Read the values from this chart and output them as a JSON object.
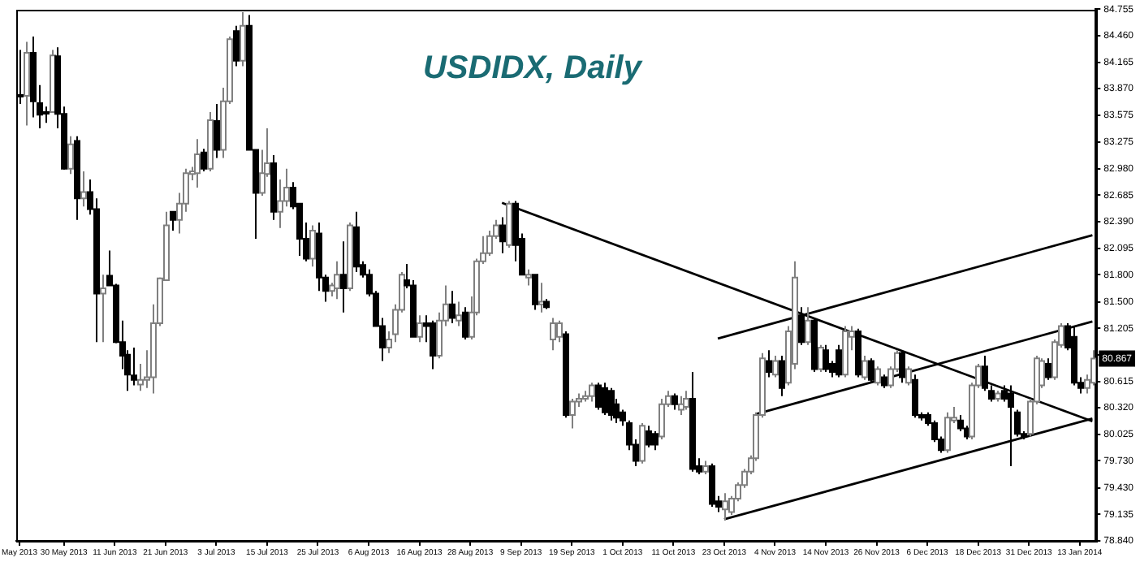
{
  "chart_data": {
    "type": "candlestick",
    "title": "USDIDX, Daily",
    "categories": [
      "May 2013",
      null,
      null,
      null,
      null,
      null,
      null,
      "30 May 2013",
      null,
      null,
      null,
      null,
      null,
      null,
      null,
      "11 Jun 2013",
      null,
      null,
      null,
      null,
      null,
      null,
      null,
      "21 Jun 2013",
      null,
      null,
      null,
      null,
      null,
      null,
      null,
      "3 Jul 2013",
      null,
      null,
      null,
      null,
      null,
      null,
      null,
      "15 Jul 2013",
      null,
      null,
      null,
      null,
      null,
      null,
      null,
      "25 Jul 2013",
      null,
      null,
      null,
      null,
      null,
      null,
      null,
      "6 Aug 2013",
      null,
      null,
      null,
      null,
      null,
      null,
      null,
      "16 Aug 2013",
      null,
      null,
      null,
      null,
      null,
      null,
      null,
      "28 Aug 2013",
      null,
      null,
      null,
      null,
      null,
      null,
      null,
      "9 Sep 2013",
      null,
      null,
      null,
      null,
      null,
      null,
      null,
      "19 Sep 2013",
      null,
      null,
      null,
      null,
      null,
      null,
      null,
      "1 Oct 2013",
      null,
      null,
      null,
      null,
      null,
      null,
      null,
      "11 Oct 2013",
      null,
      null,
      null,
      null,
      null,
      null,
      null,
      "23 Oct 2013",
      null,
      null,
      null,
      null,
      null,
      null,
      null,
      "4 Nov 2013",
      null,
      null,
      null,
      null,
      null,
      null,
      null,
      "14 Nov 2013",
      null,
      null,
      null,
      null,
      null,
      null,
      null,
      "26 Nov 2013",
      null,
      null,
      null,
      null,
      null,
      null,
      null,
      "6 Dec 2013",
      null,
      null,
      null,
      null,
      null,
      null,
      null,
      "18 Dec 2013",
      null,
      null,
      null,
      null,
      null,
      null,
      null,
      "31 Dec 2013",
      null,
      null,
      null,
      null,
      null,
      null,
      null,
      "13 Jan 2014",
      null,
      null
    ],
    "ohlc": [
      [
        83.8,
        84.3,
        83.7,
        83.79
      ],
      [
        83.79,
        84.39,
        83.46,
        84.27
      ],
      [
        84.27,
        84.45,
        83.55,
        83.73
      ],
      [
        83.71,
        83.91,
        83.43,
        83.58
      ],
      [
        83.61,
        83.67,
        83.49,
        83.6
      ],
      [
        83.61,
        84.3,
        83.6,
        84.24
      ],
      [
        84.23,
        84.33,
        83.43,
        83.59
      ],
      [
        83.59,
        83.67,
        82.97,
        82.98
      ],
      [
        82.98,
        83.34,
        82.92,
        83.25
      ],
      [
        83.29,
        83.34,
        82.41,
        82.65
      ],
      [
        82.65,
        82.95,
        82.56,
        82.72
      ],
      [
        82.72,
        82.86,
        82.47,
        82.53
      ],
      [
        82.53,
        82.65,
        81.05,
        81.59
      ],
      [
        81.59,
        81.8,
        81.05,
        81.65
      ],
      [
        81.79,
        82.07,
        81.68,
        81.68
      ],
      [
        81.68,
        81.7,
        81.04,
        81.05
      ],
      [
        81.05,
        81.29,
        80.75,
        80.9
      ],
      [
        80.91,
        80.96,
        80.51,
        80.69
      ],
      [
        80.68,
        80.99,
        80.57,
        80.63
      ],
      [
        80.58,
        80.81,
        80.51,
        80.63
      ],
      [
        80.63,
        80.96,
        80.54,
        80.66
      ],
      [
        80.66,
        81.47,
        80.48,
        81.26
      ],
      [
        81.26,
        81.77,
        81.23,
        81.76
      ],
      [
        81.74,
        82.5,
        81.74,
        82.35
      ],
      [
        82.5,
        82.5,
        82.29,
        82.41
      ],
      [
        82.41,
        82.71,
        82.26,
        82.59
      ],
      [
        82.59,
        82.98,
        82.5,
        82.93
      ],
      [
        82.92,
        83.0,
        82.85,
        82.95
      ],
      [
        82.93,
        83.31,
        82.77,
        83.14
      ],
      [
        83.16,
        83.2,
        82.95,
        82.98
      ],
      [
        82.98,
        83.61,
        82.95,
        83.52
      ],
      [
        83.51,
        83.7,
        83.1,
        83.19
      ],
      [
        83.19,
        83.88,
        83.1,
        83.73
      ],
      [
        83.73,
        84.45,
        83.7,
        84.42
      ],
      [
        84.51,
        84.57,
        84.12,
        84.18
      ],
      [
        84.18,
        84.72,
        84.12,
        84.57
      ],
      [
        84.57,
        84.69,
        83.19,
        83.19
      ],
      [
        83.19,
        83.19,
        82.2,
        82.71
      ],
      [
        82.71,
        83.19,
        82.68,
        82.93
      ],
      [
        82.92,
        83.43,
        82.89,
        83.04
      ],
      [
        83.04,
        83.13,
        82.41,
        82.5
      ],
      [
        82.5,
        82.86,
        82.32,
        82.62
      ],
      [
        82.62,
        82.98,
        82.56,
        82.77
      ],
      [
        82.77,
        82.83,
        82.53,
        82.56
      ],
      [
        82.59,
        82.59,
        82.01,
        82.2
      ],
      [
        82.2,
        82.38,
        81.95,
        81.98
      ],
      [
        81.98,
        82.35,
        81.89,
        82.29
      ],
      [
        82.26,
        82.38,
        81.62,
        81.77
      ],
      [
        81.77,
        81.8,
        81.5,
        81.62
      ],
      [
        81.62,
        81.71,
        81.56,
        81.68
      ],
      [
        81.65,
        81.95,
        81.53,
        81.8
      ],
      [
        81.8,
        82.17,
        81.38,
        81.65
      ],
      [
        81.65,
        82.38,
        81.62,
        82.35
      ],
      [
        82.33,
        82.5,
        81.83,
        81.89
      ],
      [
        81.91,
        81.95,
        81.77,
        81.8
      ],
      [
        81.8,
        81.86,
        81.56,
        81.59
      ],
      [
        81.59,
        81.62,
        81.23,
        81.23
      ],
      [
        81.23,
        81.32,
        80.84,
        80.99
      ],
      [
        80.99,
        81.17,
        80.93,
        81.08
      ],
      [
        81.14,
        81.47,
        81.05,
        81.41
      ],
      [
        81.41,
        81.83,
        81.38,
        81.8
      ],
      [
        81.74,
        81.92,
        81.65,
        81.68
      ],
      [
        81.68,
        81.74,
        81.11,
        81.11
      ],
      [
        81.11,
        81.35,
        81.05,
        81.26
      ],
      [
        81.26,
        81.35,
        81.05,
        81.23
      ],
      [
        81.26,
        81.29,
        80.75,
        80.9
      ],
      [
        80.9,
        81.38,
        80.87,
        81.29
      ],
      [
        81.29,
        81.68,
        81.23,
        81.47
      ],
      [
        81.47,
        81.62,
        81.26,
        81.32
      ],
      [
        81.29,
        81.5,
        81.23,
        81.35
      ],
      [
        81.38,
        81.44,
        81.08,
        81.11
      ],
      [
        81.11,
        81.56,
        81.08,
        81.38
      ],
      [
        81.38,
        81.98,
        81.35,
        81.95
      ],
      [
        81.95,
        82.23,
        81.92,
        82.04
      ],
      [
        82.04,
        82.29,
        82.01,
        82.23
      ],
      [
        82.23,
        82.41,
        82.2,
        82.35
      ],
      [
        82.35,
        82.44,
        82.04,
        82.17
      ],
      [
        82.13,
        82.62,
        82.1,
        82.59
      ],
      [
        82.59,
        82.62,
        81.95,
        82.13
      ],
      [
        82.2,
        82.26,
        81.8,
        81.8
      ],
      [
        81.77,
        81.86,
        81.68,
        81.8
      ],
      [
        81.8,
        81.8,
        81.41,
        81.47
      ],
      [
        81.47,
        81.71,
        81.38,
        81.5
      ],
      [
        81.5,
        81.53,
        81.42,
        81.44
      ],
      [
        81.08,
        81.32,
        80.96,
        81.26
      ],
      [
        81.11,
        81.29,
        81.05,
        81.26
      ],
      [
        81.14,
        81.17,
        80.21,
        80.24
      ],
      [
        80.24,
        80.42,
        80.09,
        80.39
      ],
      [
        80.39,
        80.48,
        80.33,
        80.42
      ],
      [
        80.42,
        80.51,
        80.39,
        80.45
      ],
      [
        80.45,
        80.6,
        80.39,
        80.57
      ],
      [
        80.57,
        80.6,
        80.3,
        80.33
      ],
      [
        80.54,
        80.6,
        80.24,
        80.27
      ],
      [
        80.51,
        80.54,
        80.18,
        80.24
      ],
      [
        80.36,
        80.42,
        80.15,
        80.21
      ],
      [
        80.27,
        80.3,
        80.12,
        80.18
      ],
      [
        80.15,
        80.18,
        79.85,
        79.91
      ],
      [
        79.91,
        79.97,
        79.67,
        79.73
      ],
      [
        79.73,
        80.15,
        79.7,
        80.12
      ],
      [
        80.06,
        80.12,
        79.88,
        79.91
      ],
      [
        80.03,
        80.06,
        79.85,
        79.91
      ],
      [
        80.0,
        80.42,
        79.97,
        80.36
      ],
      [
        80.36,
        80.51,
        80.33,
        80.45
      ],
      [
        80.45,
        80.48,
        80.3,
        80.36
      ],
      [
        80.3,
        80.45,
        80.24,
        80.36
      ],
      [
        80.33,
        80.51,
        80.3,
        80.42
      ],
      [
        80.42,
        80.72,
        79.61,
        79.64
      ],
      [
        79.67,
        79.76,
        79.58,
        79.61
      ],
      [
        79.61,
        79.73,
        79.58,
        79.67
      ],
      [
        79.67,
        79.7,
        79.22,
        79.25
      ],
      [
        79.28,
        79.34,
        79.16,
        79.22
      ],
      [
        79.19,
        79.37,
        79.07,
        79.28
      ],
      [
        79.16,
        79.34,
        79.13,
        79.31
      ],
      [
        79.31,
        79.49,
        79.28,
        79.46
      ],
      [
        79.46,
        79.64,
        79.43,
        79.61
      ],
      [
        79.61,
        79.79,
        79.58,
        79.76
      ],
      [
        79.76,
        80.27,
        79.73,
        80.24
      ],
      [
        80.24,
        80.93,
        80.21,
        80.87
      ],
      [
        80.84,
        80.96,
        80.66,
        80.72
      ],
      [
        80.69,
        80.9,
        80.66,
        80.84
      ],
      [
        80.84,
        80.9,
        80.45,
        80.54
      ],
      [
        80.6,
        81.23,
        80.57,
        81.17
      ],
      [
        80.81,
        81.95,
        80.75,
        81.77
      ],
      [
        81.35,
        81.44,
        81.02,
        81.05
      ],
      [
        81.05,
        81.44,
        81.02,
        81.29
      ],
      [
        81.29,
        81.32,
        80.72,
        80.75
      ],
      [
        80.75,
        81.02,
        80.72,
        80.99
      ],
      [
        80.96,
        81.02,
        80.72,
        80.75
      ],
      [
        80.81,
        80.84,
        80.66,
        80.72
      ],
      [
        80.96,
        81.02,
        80.66,
        80.69
      ],
      [
        80.69,
        81.23,
        80.66,
        81.17
      ],
      [
        81.11,
        81.23,
        80.96,
        81.17
      ],
      [
        81.17,
        81.2,
        80.66,
        80.69
      ],
      [
        80.66,
        80.9,
        80.63,
        80.84
      ],
      [
        80.84,
        80.87,
        80.6,
        80.63
      ],
      [
        80.6,
        80.78,
        80.57,
        80.75
      ],
      [
        80.66,
        80.69,
        80.54,
        80.57
      ],
      [
        80.57,
        80.78,
        80.54,
        80.75
      ],
      [
        80.75,
        80.96,
        80.72,
        80.93
      ],
      [
        80.93,
        80.96,
        80.6,
        80.66
      ],
      [
        80.6,
        80.78,
        80.57,
        80.75
      ],
      [
        80.63,
        80.69,
        80.21,
        80.24
      ],
      [
        80.24,
        80.27,
        80.18,
        80.21
      ],
      [
        80.24,
        80.27,
        80.12,
        80.15
      ],
      [
        80.15,
        80.18,
        79.94,
        79.97
      ],
      [
        79.97,
        80.0,
        79.82,
        79.85
      ],
      [
        79.85,
        80.27,
        79.82,
        80.21
      ],
      [
        80.18,
        80.33,
        80.15,
        80.21
      ],
      [
        80.18,
        80.24,
        80.06,
        80.09
      ],
      [
        80.09,
        80.12,
        79.97,
        80.0
      ],
      [
        80.0,
        80.6,
        79.97,
        80.57
      ],
      [
        80.57,
        80.81,
        80.54,
        80.78
      ],
      [
        80.78,
        80.9,
        80.51,
        80.54
      ],
      [
        80.51,
        80.57,
        80.39,
        80.42
      ],
      [
        80.42,
        80.51,
        80.39,
        80.48
      ],
      [
        80.51,
        80.57,
        80.39,
        80.42
      ],
      [
        80.48,
        80.57,
        79.67,
        80.33
      ],
      [
        80.27,
        80.3,
        80.0,
        80.03
      ],
      [
        80.03,
        80.06,
        79.97,
        80.0
      ],
      [
        80.03,
        80.42,
        80.0,
        80.39
      ],
      [
        80.39,
        80.9,
        80.36,
        80.87
      ],
      [
        80.57,
        80.87,
        80.54,
        80.84
      ],
      [
        80.81,
        80.87,
        80.63,
        80.66
      ],
      [
        80.66,
        81.08,
        80.63,
        81.05
      ],
      [
        81.02,
        81.26,
        80.99,
        81.23
      ],
      [
        81.23,
        81.26,
        80.96,
        80.99
      ],
      [
        81.11,
        81.23,
        80.57,
        80.6
      ],
      [
        80.6,
        80.66,
        80.48,
        80.54
      ],
      [
        80.54,
        80.69,
        80.48,
        80.63
      ],
      [
        80.6,
        80.96,
        80.57,
        80.867
      ]
    ],
    "series": [
      {
        "type": "line",
        "color": "#000000",
        "values": [
          null,
          null,
          null,
          null,
          null,
          null,
          null,
          null,
          null,
          null,
          null,
          null,
          null,
          null,
          null,
          null,
          null,
          null,
          null,
          null,
          null,
          null,
          null,
          null,
          null,
          null,
          null,
          null,
          null,
          null,
          null,
          null,
          null,
          null,
          null,
          null,
          null,
          null,
          null,
          null,
          null,
          null,
          null,
          null,
          null,
          null,
          null,
          null,
          null,
          null,
          null,
          null,
          null,
          null,
          null,
          null,
          null,
          null,
          null,
          null,
          null,
          null,
          null,
          null,
          null,
          null,
          null,
          null,
          null,
          null,
          null,
          null,
          null,
          null,
          null,
          null,
          82.6,
          null,
          null,
          null,
          null,
          null,
          null,
          null,
          null,
          null,
          null,
          null,
          null,
          null,
          null,
          null,
          null,
          null,
          null,
          null,
          null,
          null,
          null,
          null,
          null,
          null,
          null,
          null,
          null,
          null,
          null,
          null,
          null,
          null,
          null,
          null,
          null,
          null,
          null,
          null,
          null,
          null,
          null,
          null,
          null,
          null,
          null,
          null,
          null,
          null,
          null,
          null,
          null,
          null,
          null,
          null,
          null,
          null,
          null,
          null,
          null,
          null,
          null,
          null,
          null,
          null,
          null,
          null,
          null,
          null,
          null,
          null,
          null,
          null,
          null,
          null,
          null,
          null,
          null,
          null,
          null,
          null,
          null,
          null,
          null,
          null,
          null,
          null,
          null,
          null,
          null,
          null,
          null,
          80.17
        ]
      },
      {
        "type": "line",
        "color": "#000000",
        "values": [
          null,
          null,
          null,
          null,
          null,
          null,
          null,
          null,
          null,
          null,
          null,
          null,
          null,
          null,
          null,
          null,
          null,
          null,
          null,
          null,
          null,
          null,
          null,
          null,
          null,
          null,
          null,
          null,
          null,
          null,
          null,
          null,
          null,
          null,
          null,
          null,
          null,
          null,
          null,
          null,
          null,
          null,
          null,
          null,
          null,
          null,
          null,
          null,
          null,
          null,
          null,
          null,
          null,
          null,
          null,
          null,
          null,
          null,
          null,
          null,
          null,
          null,
          null,
          null,
          null,
          null,
          null,
          null,
          null,
          null,
          null,
          null,
          null,
          null,
          null,
          null,
          null,
          null,
          null,
          null,
          null,
          null,
          null,
          null,
          null,
          null,
          null,
          null,
          null,
          null,
          null,
          null,
          null,
          null,
          null,
          null,
          null,
          null,
          null,
          null,
          null,
          null,
          null,
          null,
          null,
          null,
          null,
          null,
          null,
          null,
          null,
          79.08,
          null,
          null,
          null,
          null,
          null,
          null,
          null,
          null,
          null,
          null,
          null,
          null,
          null,
          null,
          null,
          null,
          null,
          null,
          null,
          null,
          null,
          null,
          null,
          null,
          null,
          null,
          null,
          null,
          null,
          null,
          null,
          null,
          null,
          null,
          null,
          null,
          null,
          null,
          null,
          null,
          null,
          null,
          null,
          null,
          null,
          null,
          null,
          null,
          null,
          null,
          null,
          null,
          null,
          null,
          null,
          null,
          null,
          80.2
        ]
      },
      {
        "type": "line",
        "color": "#000000",
        "values": [
          null,
          null,
          null,
          null,
          null,
          null,
          null,
          null,
          null,
          null,
          null,
          null,
          null,
          null,
          null,
          null,
          null,
          null,
          null,
          null,
          null,
          null,
          null,
          null,
          null,
          null,
          null,
          null,
          null,
          null,
          null,
          null,
          null,
          null,
          null,
          null,
          null,
          null,
          null,
          null,
          null,
          null,
          null,
          null,
          null,
          null,
          null,
          null,
          null,
          null,
          null,
          null,
          null,
          null,
          null,
          null,
          null,
          null,
          null,
          null,
          null,
          null,
          null,
          null,
          null,
          null,
          null,
          null,
          null,
          null,
          null,
          null,
          null,
          null,
          null,
          null,
          null,
          null,
          null,
          null,
          null,
          null,
          null,
          null,
          null,
          null,
          null,
          null,
          null,
          null,
          null,
          null,
          null,
          null,
          null,
          null,
          null,
          null,
          null,
          null,
          null,
          null,
          null,
          null,
          null,
          null,
          null,
          null,
          null,
          null,
          null,
          null,
          null,
          null,
          null,
          null,
          80.25,
          null,
          null,
          null,
          null,
          null,
          null,
          null,
          null,
          null,
          null,
          null,
          null,
          null,
          null,
          null,
          null,
          null,
          null,
          null,
          null,
          null,
          null,
          null,
          null,
          null,
          null,
          null,
          null,
          null,
          null,
          null,
          null,
          null,
          null,
          null,
          null,
          null,
          null,
          null,
          null,
          null,
          null,
          null,
          null,
          null,
          null,
          null,
          null,
          null,
          null,
          null,
          null,
          81.28
        ]
      },
      {
        "type": "line",
        "color": "#000000",
        "values": [
          null,
          null,
          null,
          null,
          null,
          null,
          null,
          null,
          null,
          null,
          null,
          null,
          null,
          null,
          null,
          null,
          null,
          null,
          null,
          null,
          null,
          null,
          null,
          null,
          null,
          null,
          null,
          null,
          null,
          null,
          null,
          null,
          null,
          null,
          null,
          null,
          null,
          null,
          null,
          null,
          null,
          null,
          null,
          null,
          null,
          null,
          null,
          null,
          null,
          null,
          null,
          null,
          null,
          null,
          null,
          null,
          null,
          null,
          null,
          null,
          null,
          null,
          null,
          null,
          null,
          null,
          null,
          null,
          null,
          null,
          null,
          null,
          null,
          null,
          null,
          null,
          null,
          null,
          null,
          null,
          null,
          null,
          null,
          null,
          null,
          null,
          null,
          null,
          null,
          null,
          null,
          null,
          null,
          null,
          null,
          null,
          null,
          null,
          null,
          null,
          null,
          null,
          null,
          null,
          null,
          null,
          null,
          null,
          null,
          null,
          81.09,
          null,
          null,
          null,
          null,
          null,
          null,
          null,
          null,
          null,
          null,
          null,
          null,
          null,
          null,
          null,
          null,
          null,
          null,
          null,
          null,
          null,
          null,
          null,
          null,
          null,
          null,
          null,
          null,
          null,
          null,
          null,
          null,
          null,
          null,
          null,
          null,
          null,
          null,
          null,
          null,
          null,
          null,
          null,
          null,
          null,
          null,
          null,
          null,
          null,
          null,
          null,
          null,
          null,
          null,
          null,
          null,
          null,
          null,
          82.24
        ]
      }
    ],
    "ylim": [
      78.84,
      84.755
    ],
    "yticks": [
      84.755,
      {
        "value": 84.46,
        "label": "84.460"
      },
      84.165,
      {
        "value": 83.87,
        "label": "83.870"
      },
      83.575,
      83.275,
      {
        "value": 82.98,
        "label": "82.980"
      },
      82.685,
      {
        "value": 82.39,
        "label": "82.390"
      },
      82.095,
      {
        "value": 81.8,
        "label": "81.800"
      },
      {
        "value": 81.5,
        "label": "81.500"
      },
      81.205,
      {
        "value": 80.91,
        "label": null
      },
      80.615,
      {
        "value": 80.32,
        "label": "80.320"
      },
      80.025,
      {
        "value": 79.73,
        "label": "79.730"
      },
      {
        "value": 79.43,
        "label": "79.430"
      },
      79.135,
      {
        "value": 78.84,
        "label": "78.840"
      }
    ],
    "annotations": [
      {
        "text": "80.867",
        "y": 80.867
      }
    ]
  }
}
